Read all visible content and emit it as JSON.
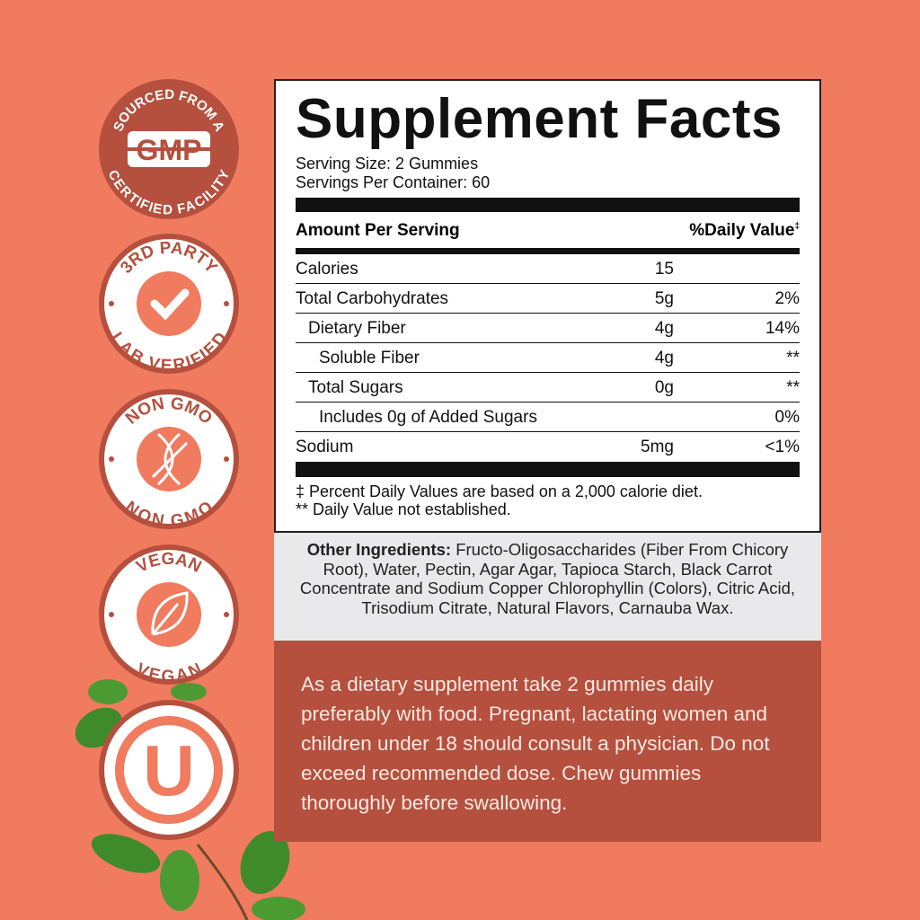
{
  "colors": {
    "background": "#f07b5f",
    "badge": "#b5503e",
    "panel": "#b5503e"
  },
  "badges": [
    {
      "top": "SOURCED FROM A",
      "center": "GMP",
      "bottom": "CERTIFIED FACILITY"
    },
    {
      "top": "3RD PARTY",
      "icon": "checkmark-icon",
      "bottom": "LAB VERIFIED"
    },
    {
      "top": "NON GMO",
      "icon": "crossed-dna-icon",
      "bottom": "NON GMO"
    },
    {
      "top": "VEGAN",
      "icon": "leaf-icon",
      "bottom": "VEGAN"
    },
    {
      "center": "U",
      "icon": "kosher-u-icon"
    }
  ],
  "facts": {
    "title": "Supplement Facts",
    "serving_size": "Serving Size: 2 Gummies",
    "servings_per_container": "Servings Per Container: 60",
    "amount_header": "Amount Per Serving",
    "dv_header": "%Daily Value",
    "dv_mark": "‡",
    "rows": [
      {
        "name": "Calories",
        "amount": "15",
        "dv": ""
      },
      {
        "name": "Total Carbohydrates",
        "amount": "5g",
        "dv": "2%"
      },
      {
        "name": "Dietary Fiber",
        "amount": "4g",
        "dv": "14%"
      },
      {
        "name": "Soluble Fiber",
        "amount": "4g",
        "dv": "**"
      },
      {
        "name": "Total Sugars",
        "amount": "0g",
        "dv": "**"
      },
      {
        "name": "Includes 0g of Added Sugars",
        "amount": "",
        "dv": "0%"
      },
      {
        "name": "Sodium",
        "amount": "5mg",
        "dv": "<1%"
      }
    ],
    "footnote1": "‡ Percent Daily Values are based on a 2,000 calorie diet.",
    "footnote2": "** Daily Value not established."
  },
  "ingredients": {
    "label": "Other Ingredients:",
    "text": " Fructo-Oligosaccharides (Fiber From Chicory Root), Water, Pectin, Agar Agar, Tapioca Starch, Black Carrot Concentrate and Sodium Copper Chlorophyllin (Colors), Citric Acid, Trisodium Citrate, Natural Flavors, Carnauba Wax."
  },
  "directions": "As a dietary supplement take 2 gummies daily preferably with food. Pregnant, lactating women and children under 18 should consult a physician. Do not exceed recommended dose. Chew gummies thoroughly before swallowing."
}
